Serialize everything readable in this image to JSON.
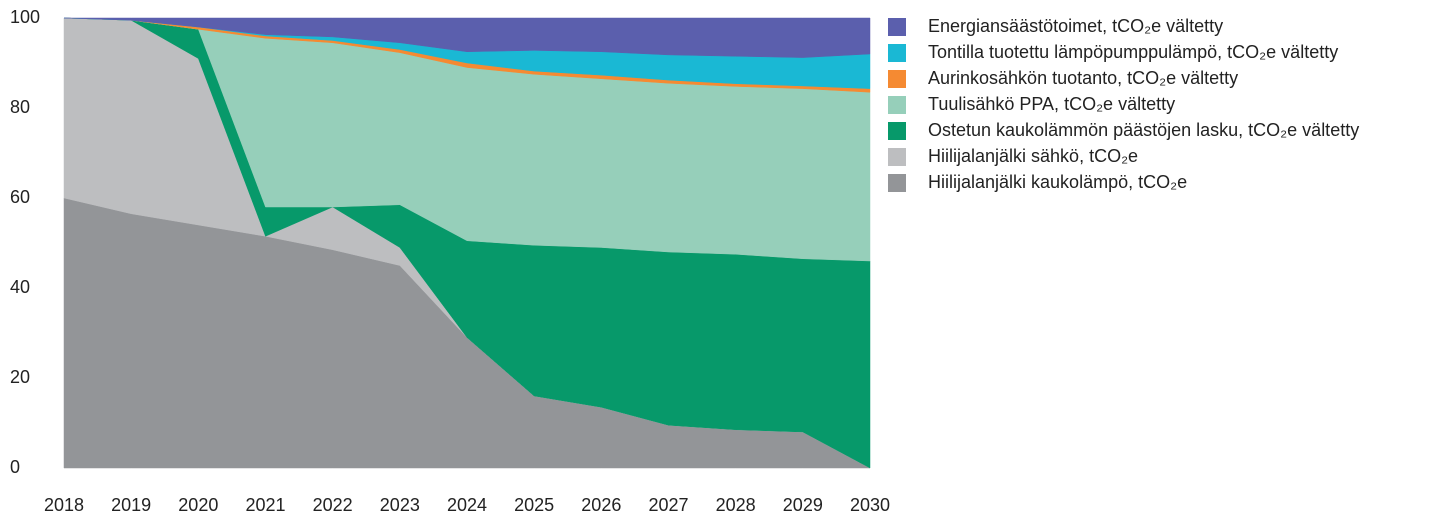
{
  "chart_data": {
    "type": "stacked_area",
    "x": [
      2018,
      2019,
      2020,
      2021,
      2022,
      2023,
      2024,
      2025,
      2026,
      2027,
      2028,
      2029,
      2030
    ],
    "xlim": [
      2018,
      2030
    ],
    "xticks": [
      2018,
      2019,
      2020,
      2021,
      2022,
      2023,
      2024,
      2025,
      2026,
      2027,
      2028,
      2029,
      2030
    ],
    "ylim": [
      0,
      100
    ],
    "yticks": [
      0,
      20,
      40,
      60,
      80,
      100
    ],
    "series": [
      {
        "name": "Hiilijalanjälki kaukolämpö, tCO₂e",
        "color": "#939598",
        "values": [
          60,
          56.5,
          54,
          51.5,
          48.5,
          45,
          29,
          16,
          13.5,
          9.5,
          8.5,
          8,
          0
        ]
      },
      {
        "name": "Hiilijalanjälki sähkö, tCO₂e",
        "color": "#bdbec0",
        "values": [
          40,
          43,
          37,
          0,
          9.5,
          4,
          0,
          0,
          0,
          0,
          0,
          0,
          0
        ]
      },
      {
        "name": "Ostetun kaukolämmön päästöjen lasku, tCO₂e vältetty",
        "color": "#07996a",
        "values": [
          0,
          0,
          6.5,
          6.5,
          0,
          9.5,
          21.5,
          33.5,
          35.5,
          38.5,
          39,
          38.5,
          46
        ]
      },
      {
        "name": "Tuulisähkö PPA, tCO₂e vältetty",
        "color": "#96cfba",
        "values": [
          0,
          0,
          0,
          37.5,
          36.5,
          33.8,
          38.5,
          38,
          37.5,
          37.5,
          37.3,
          37.8,
          37.5
        ]
      },
      {
        "name": "Aurinkosähkön tuotanto, tCO₂e vältetty",
        "color": "#f58a32",
        "values": [
          0,
          0,
          0.5,
          0.5,
          0.5,
          0.7,
          1,
          0.7,
          0.8,
          0.7,
          0.6,
          0.6,
          0.8
        ]
      },
      {
        "name": "Tontilla tuotettu lämpöpumppulämpö, tCO₂e vältetty",
        "color": "#1ab8d4",
        "values": [
          0,
          0,
          0,
          0.3,
          0.8,
          1.5,
          2.5,
          4.6,
          5.2,
          5.6,
          6.1,
          6.3,
          7.7
        ]
      },
      {
        "name": "Energiansäästötoimet, tCO₂e vältetty",
        "color": "#5b5fad",
        "values": [
          0,
          0.5,
          2,
          3.7,
          4.2,
          5.5,
          7.5,
          7.2,
          7.5,
          8.2,
          8.5,
          8.8,
          8
        ]
      }
    ]
  }
}
